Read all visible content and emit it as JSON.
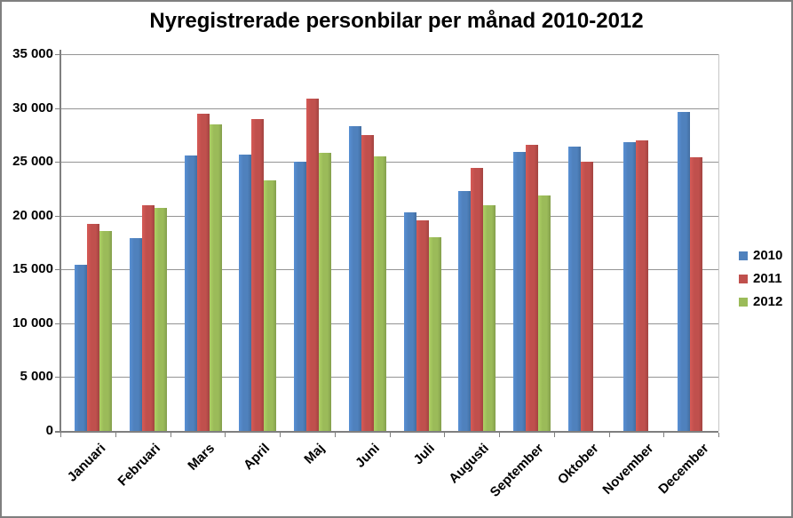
{
  "chart_data": {
    "type": "bar",
    "title": "Nyregistrerade personbilar per månad 2010-2012",
    "categories": [
      "Januari",
      "Februari",
      "Mars",
      "April",
      "Maj",
      "Juni",
      "Juli",
      "Augusti",
      "September",
      "Oktober",
      "November",
      "December"
    ],
    "series": [
      {
        "name": "2010",
        "color": "#4F81BD",
        "values": [
          15400,
          17900,
          25600,
          25700,
          25000,
          28300,
          20300,
          22300,
          25900,
          26400,
          26800,
          29600
        ]
      },
      {
        "name": "2011",
        "color": "#C0504D",
        "values": [
          19200,
          21000,
          29500,
          29000,
          30900,
          27500,
          19600,
          24400,
          26600,
          25000,
          27000,
          25400
        ]
      },
      {
        "name": "2012",
        "color": "#9BBB59",
        "values": [
          18600,
          20700,
          28500,
          23300,
          25800,
          25500,
          18000,
          21000,
          21900,
          null,
          null,
          null
        ]
      }
    ],
    "ylim": [
      0,
      35000
    ],
    "ytick_step": 5000,
    "ytick_labels": [
      "0",
      "5 000",
      "10 000",
      "15 000",
      "20 000",
      "25 000",
      "30 000",
      "35 000"
    ],
    "grid": true,
    "legend_position": "right",
    "legend_entries": [
      "2010",
      "2011",
      "2012"
    ]
  },
  "colors": {
    "background": "#FFFFFF",
    "outer_border": "#7F7F7F",
    "gridline": "#949494",
    "axis": "#7F7F7F",
    "plot_right_border": "#C6C6C6",
    "text": "#000000"
  }
}
